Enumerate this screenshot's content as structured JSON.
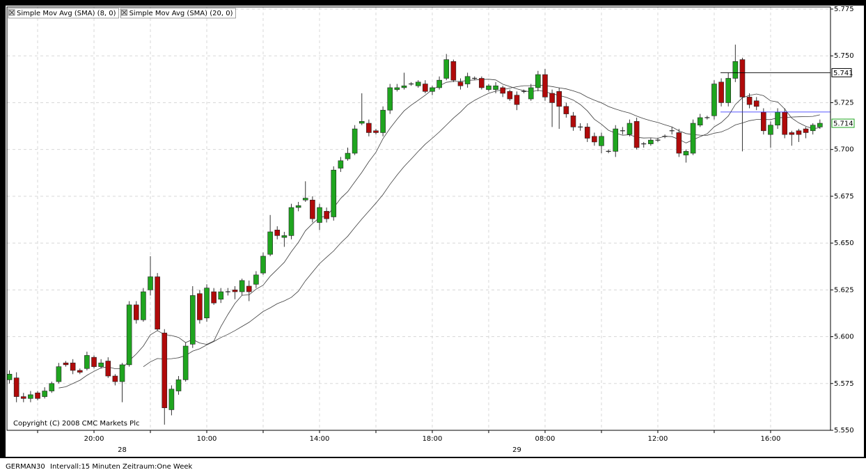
{
  "chart_data": {
    "type": "candlestick",
    "copyright": "Copyright (C) 2008 CMC Markets Plc",
    "symbol": "GERMAN30",
    "interval": "Intervall:15 Minuten",
    "timeframe": "Zeitraum:One Week",
    "up_color": "#1fa51f",
    "down_color": "#b00a0a",
    "indicators": [
      {
        "name": "Simple Mov Avg (SMA) (8, 0)",
        "period": 8,
        "color": "#3c3c3c"
      },
      {
        "name": "Simple Mov Avg (SMA) (20, 0)",
        "period": 20,
        "color": "#3c3c3c"
      }
    ],
    "open": [
      5577,
      5578,
      5568,
      5567,
      5570,
      5568,
      5571,
      5576,
      5586,
      5586,
      5582,
      5583,
      5589,
      5584,
      5587,
      5579,
      5576,
      5585,
      5617,
      5609,
      5625,
      5632,
      5602,
      5561,
      5571,
      5577,
      5596,
      5623,
      5610,
      5624,
      5620,
      5624,
      5625,
      5624,
      5627,
      5628,
      5634,
      5644,
      5657,
      5653,
      5654,
      5669,
      5673,
      5673,
      5661,
      5667,
      5664,
      5690,
      5695,
      5698,
      5714,
      5714,
      5710,
      5709,
      5721,
      5732,
      5733,
      5735,
      5734,
      5735,
      5731,
      5733,
      5738,
      5747,
      5736,
      5735,
      5738,
      5738,
      5732,
      5732,
      5733,
      5731,
      5729,
      5731,
      5727,
      5733,
      5740,
      5730,
      5731,
      5723,
      5718,
      5712,
      5712,
      5707,
      5702,
      5699,
      5699,
      5710,
      5708,
      5715,
      5703,
      5703,
      5705,
      5707,
      5710,
      5709,
      5697,
      5698,
      5713,
      5717,
      5718,
      5736,
      5725,
      5738,
      5748,
      5728,
      5726,
      5720,
      5708,
      5713,
      5720,
      5709,
      5710,
      5711,
      5710,
      5712
    ],
    "high": [
      5582,
      5581,
      5570,
      5571,
      5571,
      5573,
      5576,
      5586,
      5587,
      5588,
      5583,
      5592,
      5590,
      5588,
      5589,
      5580,
      5586,
      5619,
      5619,
      5626,
      5643,
      5634,
      5604,
      5574,
      5579,
      5597,
      5627,
      5625,
      5628,
      5626,
      5626,
      5626,
      5627,
      5631,
      5630,
      5635,
      5645,
      5665,
      5659,
      5656,
      5671,
      5672,
      5683,
      5675,
      5671,
      5669,
      5691,
      5696,
      5701,
      5713,
      5730,
      5716,
      5711,
      5723,
      5735,
      5735,
      5741,
      5736,
      5737,
      5737,
      5734,
      5739,
      5751,
      5748,
      5738,
      5741,
      5739,
      5739,
      5735,
      5736,
      5734,
      5732,
      5731,
      5732,
      5735,
      5742,
      5743,
      5732,
      5733,
      5725,
      5720,
      5714,
      5714,
      5709,
      5709,
      5700,
      5713,
      5712,
      5716,
      5717,
      5704,
      5706,
      5706,
      5708,
      5712,
      5711,
      5700,
      5716,
      5719,
      5718,
      5737,
      5738,
      5741,
      5756,
      5749,
      5730,
      5728,
      5722,
      5715,
      5722,
      5722,
      5710,
      5711,
      5712,
      5714,
      5716
    ],
    "low": [
      5575,
      5565,
      5565,
      5565,
      5566,
      5567,
      5570,
      5575,
      5584,
      5580,
      5580,
      5582,
      5583,
      5583,
      5578,
      5574,
      5565,
      5584,
      5607,
      5608,
      5622,
      5603,
      5553,
      5558,
      5569,
      5576,
      5594,
      5607,
      5608,
      5617,
      5618,
      5622,
      5620,
      5622,
      5619,
      5626,
      5633,
      5643,
      5652,
      5648,
      5652,
      5667,
      5672,
      5661,
      5657,
      5661,
      5662,
      5688,
      5694,
      5697,
      5713,
      5707,
      5708,
      5707,
      5719,
      5731,
      5732,
      5734,
      5733,
      5730,
      5729,
      5732,
      5737,
      5736,
      5732,
      5733,
      5737,
      5732,
      5731,
      5730,
      5728,
      5726,
      5721,
      5730,
      5726,
      5731,
      5726,
      5712,
      5711,
      5717,
      5710,
      5710,
      5704,
      5702,
      5698,
      5698,
      5696,
      5708,
      5707,
      5700,
      5701,
      5702,
      5704,
      5706,
      5708,
      5696,
      5693,
      5697,
      5712,
      5716,
      5716,
      5723,
      5723,
      5736,
      5699,
      5722,
      5721,
      5708,
      5701,
      5711,
      5706,
      5702,
      5704,
      5706,
      5708,
      5711
    ],
    "close": [
      5580,
      5568,
      5567,
      5569,
      5567,
      5571,
      5575,
      5584,
      5585,
      5582,
      5581,
      5590,
      5584,
      5586,
      5579,
      5576,
      5585,
      5617,
      5609,
      5624,
      5632,
      5604,
      5562,
      5572,
      5577,
      5595,
      5622,
      5609,
      5626,
      5618,
      5624,
      5624,
      5624,
      5630,
      5624,
      5633,
      5643,
      5656,
      5654,
      5654,
      5669,
      5670,
      5674,
      5663,
      5669,
      5663,
      5689,
      5694,
      5698,
      5711,
      5715,
      5709,
      5709,
      5721,
      5733,
      5733,
      5734,
      5735,
      5736,
      5731,
      5733,
      5737,
      5748,
      5737,
      5734,
      5739,
      5738,
      5733,
      5734,
      5734,
      5730,
      5727,
      5724,
      5731,
      5733,
      5740,
      5728,
      5725,
      5723,
      5719,
      5712,
      5712,
      5706,
      5704,
      5707,
      5699,
      5711,
      5710,
      5714,
      5701,
      5703,
      5705,
      5705,
      5707,
      5710,
      5698,
      5699,
      5714,
      5717,
      5717,
      5735,
      5725,
      5738,
      5747,
      5728,
      5724,
      5723,
      5710,
      5713,
      5720,
      5708,
      5708,
      5708,
      5709,
      5713,
      5714
    ],
    "last_price": {
      "value": 5714,
      "label": "5.714",
      "color": "#1fa51f"
    },
    "price_lines": [
      {
        "value": 5741,
        "label": "5.741",
        "color": "#000000"
      },
      {
        "value": 5720,
        "color": "#2020ff"
      }
    ],
    "xlim": [
      -0.35,
      116.5
    ],
    "xticks": [
      4,
      {
        "value": 12,
        "label": "20:00"
      },
      20,
      {
        "value": 28,
        "label": "10:00"
      },
      36,
      {
        "value": 44,
        "label": "14:00"
      },
      52,
      {
        "value": 60,
        "label": "18:00"
      },
      68,
      {
        "value": 76,
        "label": "08:00"
      },
      84,
      {
        "value": 92,
        "label": "12:00"
      },
      100,
      {
        "value": 108,
        "label": "16:00"
      }
    ],
    "date_labels": [
      {
        "value": 16,
        "label": "28"
      },
      {
        "value": 72,
        "label": "29"
      }
    ],
    "ylim": [
      5550,
      5775
    ],
    "yticks": [
      {
        "value": 5550,
        "label": "5.550"
      },
      {
        "value": 5575,
        "label": "5.575"
      },
      {
        "value": 5600,
        "label": "5.600"
      },
      {
        "value": 5625,
        "label": "5.625"
      },
      {
        "value": 5650,
        "label": "5.650"
      },
      {
        "value": 5675,
        "label": "5.675"
      },
      {
        "value": 5700,
        "label": "5.700"
      },
      {
        "value": 5725,
        "label": "5.725"
      },
      {
        "value": 5750,
        "label": "5.750"
      },
      {
        "value": 5775,
        "label": "5.775"
      }
    ],
    "grid": true
  }
}
